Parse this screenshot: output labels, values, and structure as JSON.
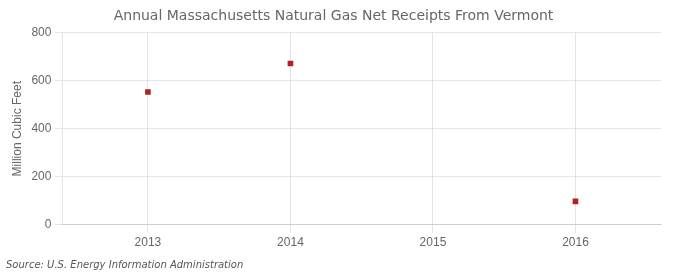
{
  "chart_data": {
    "type": "scatter",
    "title": "Annual Massachusetts Natural Gas Net Receipts From Vermont",
    "ylabel": "Million Cubic Feet",
    "annotation": "Source: U.S. Energy Information Administration",
    "x": [
      2013,
      2014,
      2016
    ],
    "values": [
      553,
      672,
      97
    ],
    "color": "#b22222",
    "marker": "square",
    "xlim": [
      2012.4,
      2016.6
    ],
    "ylim": [
      0,
      800
    ],
    "xticks": [
      2013,
      2014,
      2015,
      2016
    ],
    "yticks": [
      0,
      200,
      400,
      600,
      800
    ],
    "grid": true
  }
}
